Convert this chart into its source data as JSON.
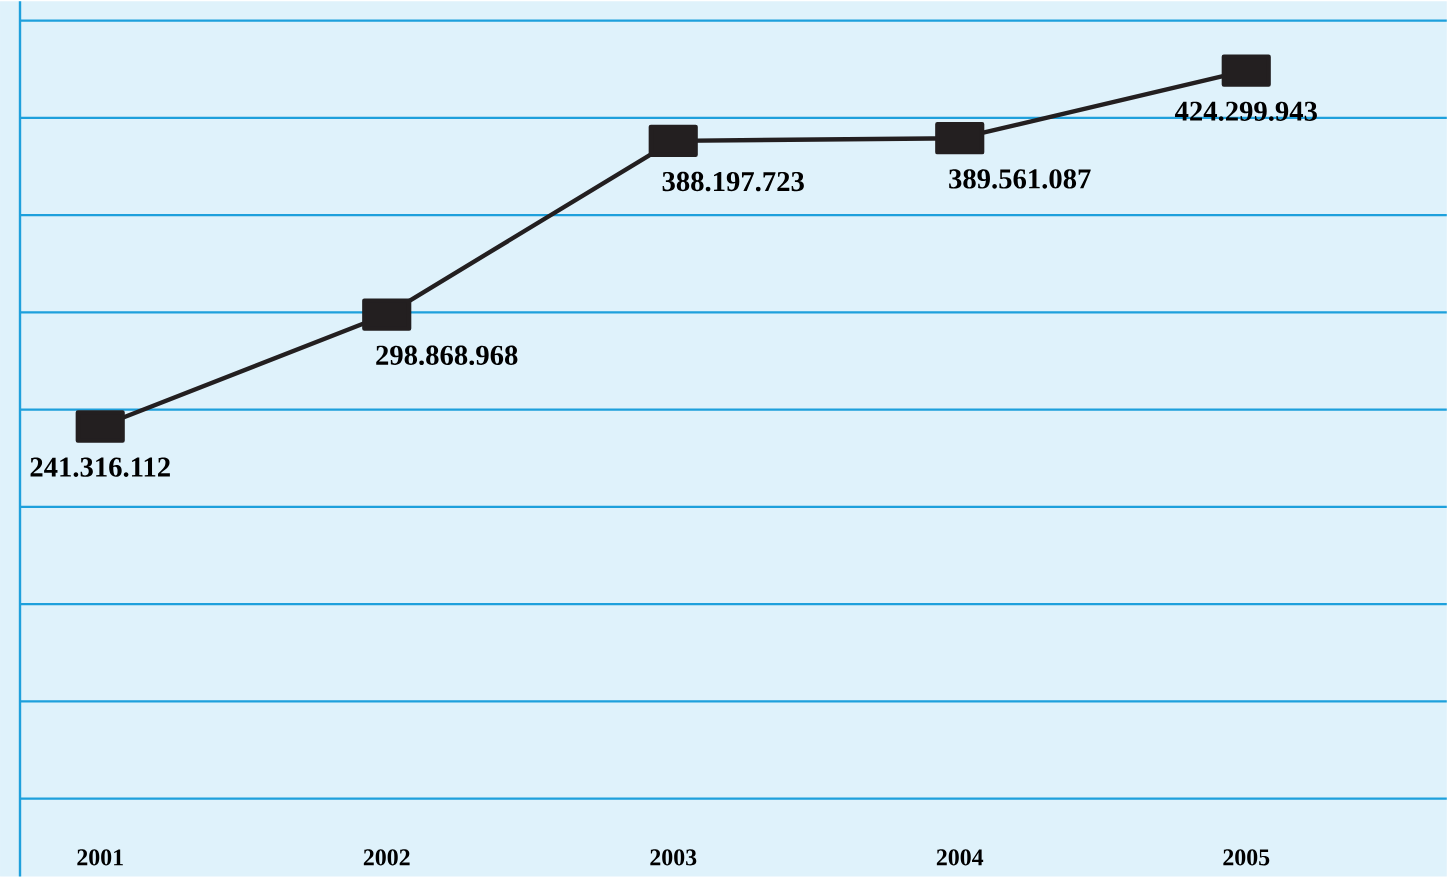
{
  "chart_data": {
    "type": "line",
    "categories": [
      "2001",
      "2002",
      "2003",
      "2004",
      "2005"
    ],
    "series": [
      {
        "color": "#231f20",
        "values": [
          241316112,
          298868968,
          388197723,
          389561087,
          424299943
        ],
        "value_labels": [
          "241.316.112",
          "298.868.968",
          "388.197.723",
          "389.561.087",
          "424.299.943"
        ]
      }
    ],
    "ylim": [
      10000000,
      460000000
    ],
    "yticks": [
      {
        "value": 50000000,
        "label": null
      },
      {
        "value": 100000000,
        "label": null
      },
      {
        "value": 150000000,
        "label": null
      },
      {
        "value": 200000000,
        "label": null
      },
      {
        "value": 250000000,
        "label": null
      },
      {
        "value": 300000000,
        "label": null
      },
      {
        "value": 350000000,
        "label": null
      },
      {
        "value": 400000000,
        "label": null
      },
      {
        "value": 450000000,
        "label": null
      }
    ],
    "tick_labels": "x",
    "grid": "y",
    "marker": "square",
    "line_style": "solid"
  }
}
